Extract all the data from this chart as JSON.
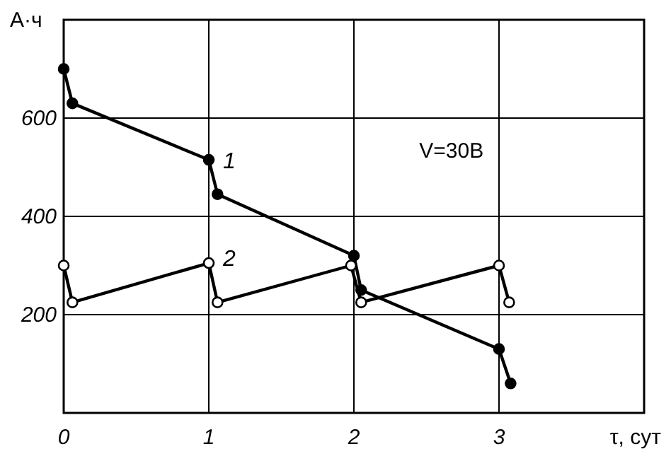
{
  "chart_data": {
    "type": "line",
    "ylabel": "A·ч",
    "xlabel": "τ, сут",
    "annotations": [
      "V=30В"
    ],
    "xlim": [
      0,
      4
    ],
    "xticks": [
      0,
      1,
      2,
      3
    ],
    "ylim": [
      0,
      800
    ],
    "yticks": [
      200,
      400,
      600
    ],
    "grid": true,
    "marker": "circle",
    "line_style": "solid",
    "series": [
      {
        "name": "1",
        "color": "#000000",
        "x": [
          0,
          0.06,
          1,
          1.06,
          2,
          2.05,
          3,
          3.08
        ],
        "values": [
          700,
          630,
          515,
          445,
          320,
          250,
          130,
          60
        ]
      },
      {
        "name": "2",
        "color": "#000000",
        "x": [
          0,
          0.06,
          1,
          1.06,
          1.98,
          2.05,
          3,
          3.07
        ],
        "values": [
          300,
          225,
          305,
          225,
          300,
          225,
          300,
          225
        ]
      }
    ]
  }
}
